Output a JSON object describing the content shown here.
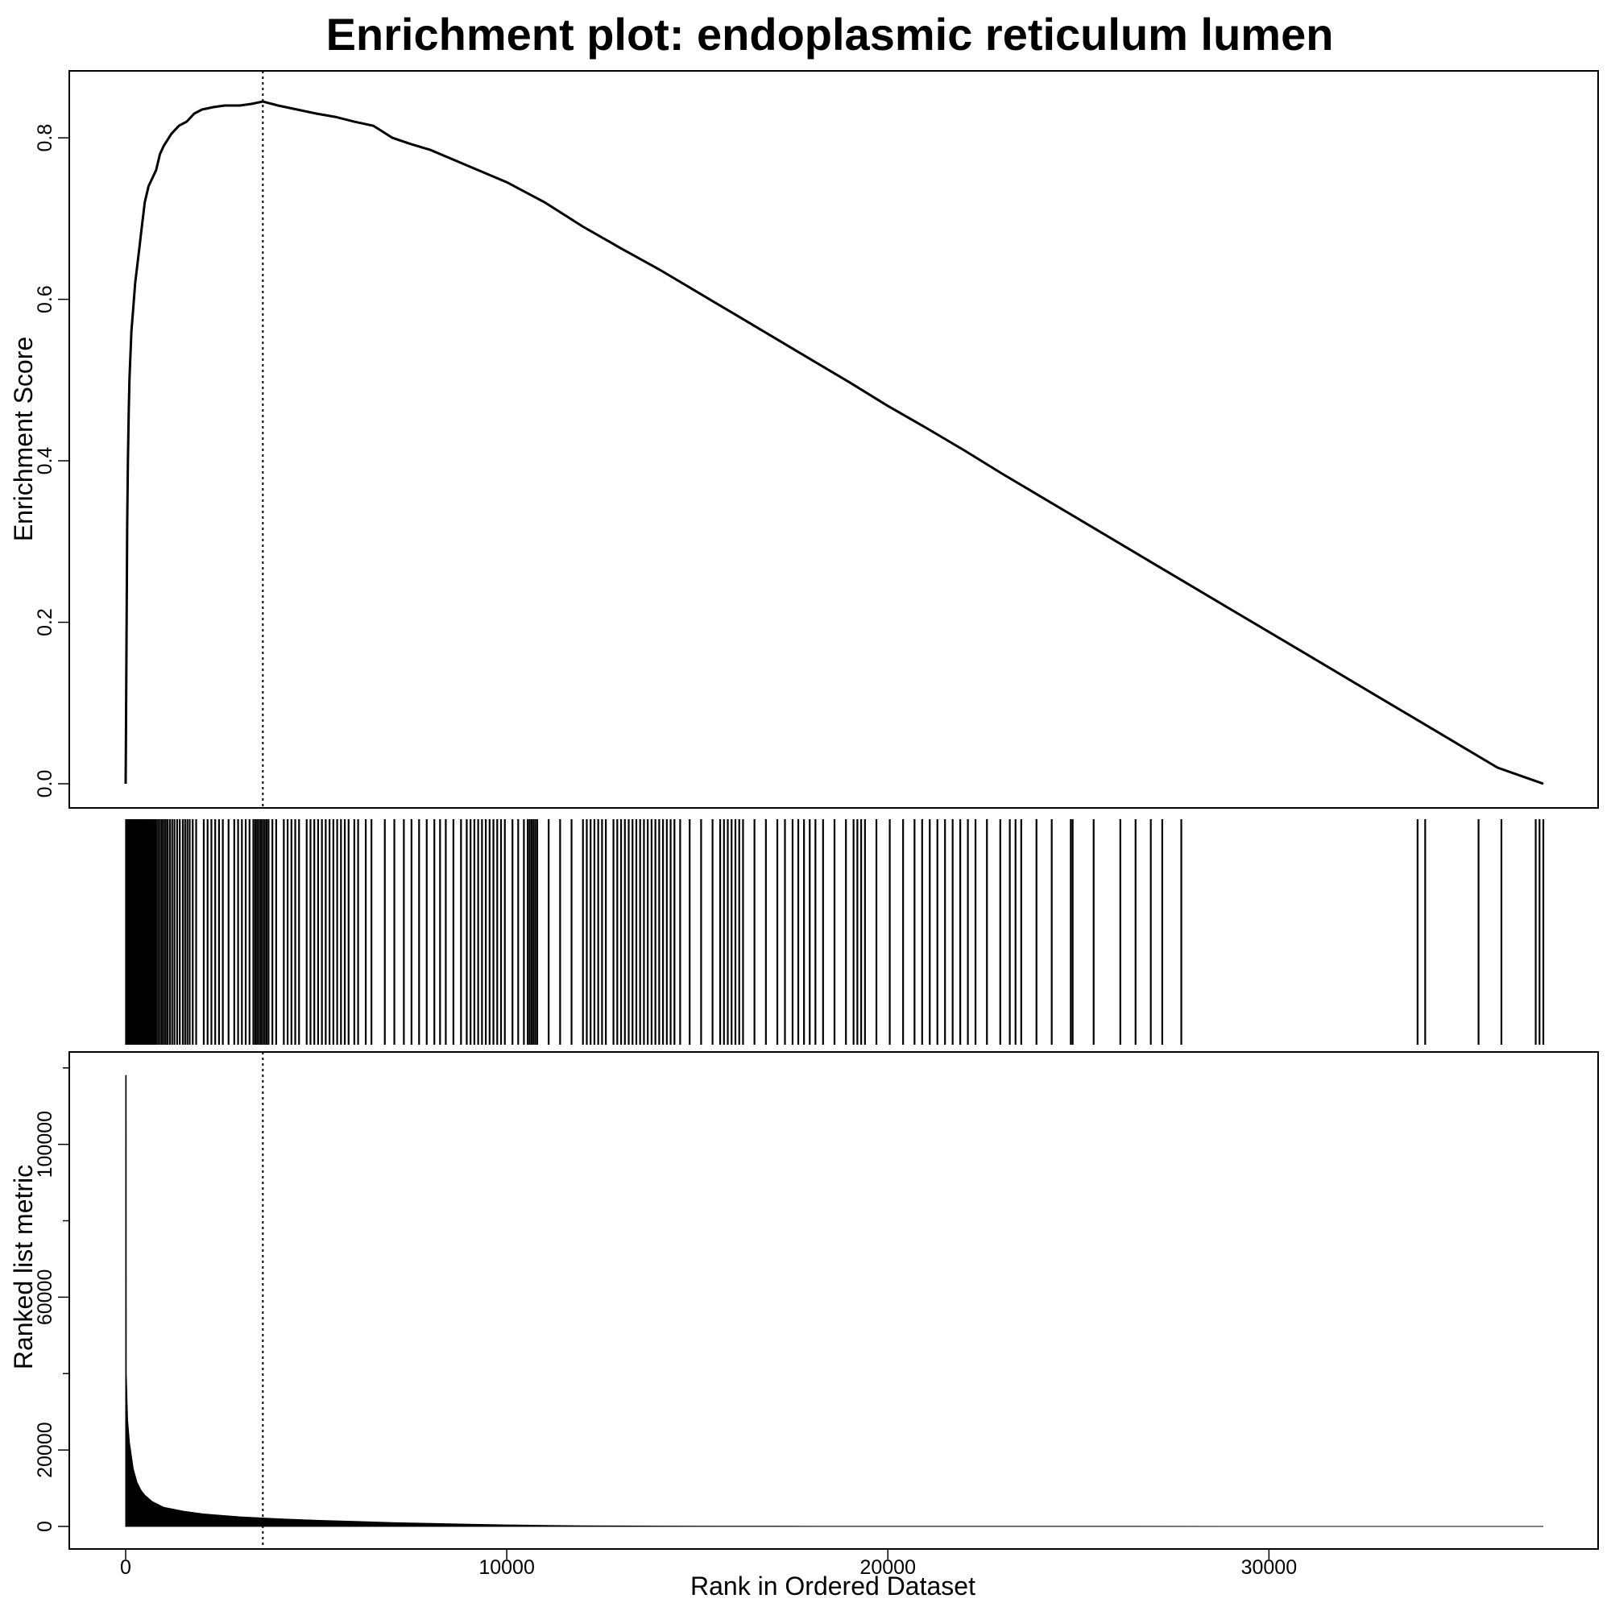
{
  "chart_data": {
    "type": "line",
    "title": "Enrichment plot: endoplasmic reticulum lumen",
    "xlabel": "Rank in Ordered Dataset",
    "xlim": [
      0,
      37200
    ],
    "x_ticks": [
      0,
      10000,
      20000,
      30000
    ],
    "x_tick_labels": [
      "0",
      "10000",
      "20000",
      "30000"
    ],
    "peak_rank": 3600,
    "enrichment_score": {
      "ylabel": "Enrichment Score",
      "ylim": [
        0,
        0.85
      ],
      "y_ticks": [
        0.0,
        0.2,
        0.4,
        0.6,
        0.8
      ],
      "y_tick_labels": [
        "0.0",
        "0.2",
        "0.4",
        "0.6",
        "0.8"
      ],
      "points": [
        [
          0,
          0.0
        ],
        [
          20,
          0.15
        ],
        [
          40,
          0.32
        ],
        [
          60,
          0.4
        ],
        [
          80,
          0.46
        ],
        [
          100,
          0.5
        ],
        [
          150,
          0.56
        ],
        [
          200,
          0.59
        ],
        [
          250,
          0.62
        ],
        [
          300,
          0.64
        ],
        [
          350,
          0.66
        ],
        [
          400,
          0.68
        ],
        [
          450,
          0.7
        ],
        [
          500,
          0.72
        ],
        [
          600,
          0.74
        ],
        [
          700,
          0.75
        ],
        [
          800,
          0.76
        ],
        [
          900,
          0.78
        ],
        [
          1000,
          0.79
        ],
        [
          1200,
          0.805
        ],
        [
          1400,
          0.815
        ],
        [
          1600,
          0.82
        ],
        [
          1800,
          0.83
        ],
        [
          2000,
          0.835
        ],
        [
          2300,
          0.838
        ],
        [
          2600,
          0.84
        ],
        [
          3000,
          0.84
        ],
        [
          3300,
          0.842
        ],
        [
          3600,
          0.845
        ],
        [
          4000,
          0.84
        ],
        [
          4500,
          0.835
        ],
        [
          5000,
          0.83
        ],
        [
          5500,
          0.826
        ],
        [
          6000,
          0.82
        ],
        [
          6500,
          0.815
        ],
        [
          7000,
          0.8
        ],
        [
          7500,
          0.792
        ],
        [
          8000,
          0.785
        ],
        [
          8500,
          0.775
        ],
        [
          9000,
          0.765
        ],
        [
          10000,
          0.745
        ],
        [
          11000,
          0.72
        ],
        [
          12000,
          0.69
        ],
        [
          13000,
          0.663
        ],
        [
          14000,
          0.637
        ],
        [
          15000,
          0.609
        ],
        [
          16000,
          0.581
        ],
        [
          17000,
          0.553
        ],
        [
          18000,
          0.525
        ],
        [
          19000,
          0.497
        ],
        [
          20000,
          0.468
        ],
        [
          21000,
          0.441
        ],
        [
          22000,
          0.413
        ],
        [
          23000,
          0.384
        ],
        [
          24000,
          0.356
        ],
        [
          25000,
          0.328
        ],
        [
          26000,
          0.3
        ],
        [
          27000,
          0.272
        ],
        [
          28000,
          0.244
        ],
        [
          29000,
          0.216
        ],
        [
          30000,
          0.188
        ],
        [
          31000,
          0.16
        ],
        [
          32000,
          0.132
        ],
        [
          33000,
          0.104
        ],
        [
          34000,
          0.076
        ],
        [
          35000,
          0.048
        ],
        [
          36000,
          0.02
        ],
        [
          37200,
          0.0
        ]
      ]
    },
    "gene_hits": [
      10,
      40,
      70,
      100,
      130,
      160,
      190,
      220,
      260,
      290,
      320,
      350,
      390,
      420,
      460,
      490,
      520,
      560,
      600,
      640,
      680,
      720,
      760,
      800,
      850,
      900,
      950,
      1000,
      1050,
      1100,
      1160,
      1220,
      1280,
      1350,
      1420,
      1500,
      1560,
      1620,
      1680,
      1760,
      1850,
      2050,
      2150,
      2250,
      2350,
      2450,
      2550,
      2700,
      2850,
      2950,
      3050,
      3150,
      3250,
      3350,
      3400,
      3450,
      3500,
      3550,
      3600,
      3650,
      3700,
      3750,
      3850,
      3950,
      4150,
      4250,
      4350,
      4450,
      4550,
      4750,
      4850,
      4950,
      5050,
      5150,
      5250,
      5350,
      5450,
      5550,
      5650,
      5750,
      5850,
      6000,
      6100,
      6300,
      6450,
      6800,
      7050,
      7300,
      7500,
      7700,
      7900,
      8100,
      8250,
      8400,
      8600,
      8800,
      8950,
      9050,
      9150,
      9250,
      9350,
      9450,
      9550,
      9650,
      9750,
      9850,
      9950,
      10150,
      10300,
      10450,
      10550,
      10600,
      10650,
      10700,
      10750,
      10800,
      11100,
      11400,
      11700,
      12000,
      12100,
      12200,
      12300,
      12400,
      12500,
      12600,
      12800,
      12900,
      13000,
      13100,
      13200,
      13300,
      13400,
      13500,
      13600,
      13700,
      13800,
      13900,
      14000,
      14100,
      14200,
      14300,
      14400,
      14550,
      14800,
      15100,
      15400,
      15600,
      15700,
      15800,
      15900,
      16000,
      16100,
      16200,
      16500,
      16800,
      17100,
      17300,
      17500,
      17650,
      17800,
      17950,
      18100,
      18300,
      18600,
      18900,
      19100,
      19200,
      19300,
      19400,
      19700,
      20050,
      20400,
      20700,
      20900,
      21100,
      21300,
      21500,
      21700,
      21900,
      22100,
      22300,
      22600,
      22950,
      23200,
      23350,
      23500,
      23900,
      24300,
      24800,
      24850,
      25400,
      26100,
      26500,
      26900,
      27200,
      27700,
      33900,
      34100,
      35500,
      36100,
      37000,
      37100,
      37200
    ],
    "ranked_metric": {
      "ylabel": "Ranked list metric",
      "ylim": [
        -4000,
        125000
      ],
      "y_ticks": [
        0,
        20000,
        60000,
        100000
      ],
      "y_tick_labels": [
        "0",
        "20000",
        "60000",
        "100000"
      ],
      "y_minor_ticks": [
        40000,
        80000,
        120000
      ],
      "points": [
        [
          0,
          118000
        ],
        [
          15,
          118000
        ],
        [
          16,
          40000
        ],
        [
          50,
          28000
        ],
        [
          100,
          22000
        ],
        [
          200,
          15000
        ],
        [
          300,
          11500
        ],
        [
          400,
          9500
        ],
        [
          500,
          8200
        ],
        [
          700,
          6500
        ],
        [
          1000,
          5000
        ],
        [
          1500,
          4000
        ],
        [
          2000,
          3300
        ],
        [
          3000,
          2500
        ],
        [
          4000,
          2000
        ],
        [
          5000,
          1600
        ],
        [
          6000,
          1300
        ],
        [
          7000,
          1000
        ],
        [
          8000,
          800
        ],
        [
          9000,
          600
        ],
        [
          10000,
          400
        ],
        [
          11000,
          250
        ],
        [
          12000,
          150
        ],
        [
          14000,
          80
        ],
        [
          17000,
          40
        ],
        [
          20000,
          20
        ],
        [
          37200,
          0
        ]
      ]
    }
  }
}
